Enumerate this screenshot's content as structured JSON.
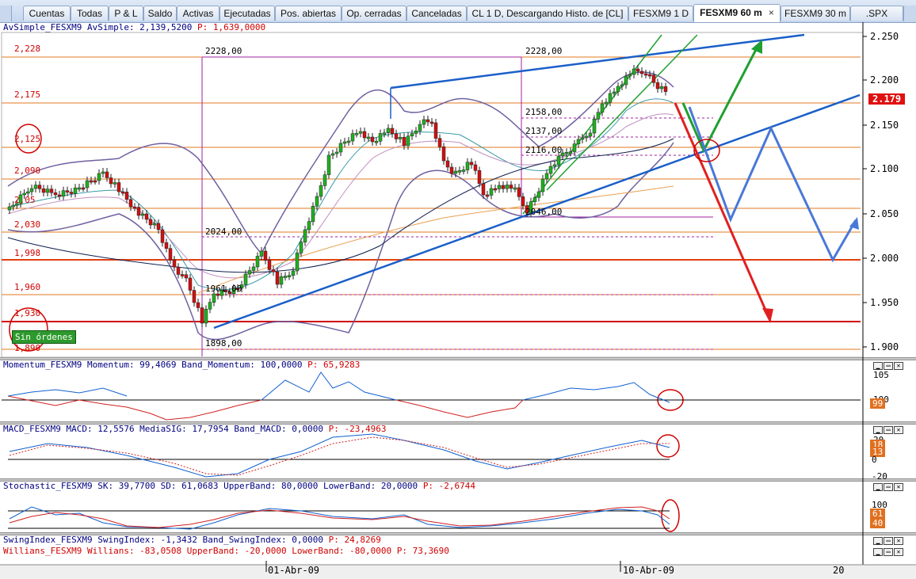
{
  "tabs": [
    {
      "label": "Cuentas",
      "active": false
    },
    {
      "label": "Todas",
      "active": false
    },
    {
      "label": "P & L",
      "active": false
    },
    {
      "label": "Saldo",
      "active": false
    },
    {
      "label": "Activas",
      "active": false
    },
    {
      "label": "Ejecutadas",
      "active": false
    },
    {
      "label": "Pos. abiertas",
      "active": false
    },
    {
      "label": "Op. cerradas",
      "active": false
    },
    {
      "label": "Canceladas",
      "active": false
    },
    {
      "label": "CL 1 D, Descargando Histo. de [CL]",
      "active": false
    },
    {
      "label": "FESXM9 1 D",
      "active": false
    },
    {
      "label": "FESXM9 60 m",
      "active": true
    },
    {
      "label": "FESXM9 30 m",
      "active": false
    },
    {
      "label": ".SPX",
      "active": false
    }
  ],
  "tab_close": "×",
  "price_panel": {
    "title_prefix": "AvSimple_FESXM9 AvSimple: 2,139,5200",
    "title_p": "P: 1,639,0000",
    "axis_ticks": [
      "2.250",
      "2.200",
      "2.150",
      "2.100",
      "2.050",
      "2.000",
      "1.950",
      "1.900"
    ],
    "last_price": "2.179",
    "level_labels": [
      "2,228",
      "2,175",
      "2,125",
      "2,090",
      "2,05",
      "2,030",
      "1,998",
      "1,960",
      "1,930",
      "1,890"
    ],
    "annotations": [
      "2228,00",
      "2228,00",
      "2158,00",
      "2137,00",
      "2116,00",
      "2024,00",
      "2046,00",
      "1961,00",
      "1898,00"
    ],
    "order_badge": "Sin órdenes"
  },
  "momentum_panel": {
    "title_prefix": "Momentum_FESXM9 Momentum: 99,4069 Band_Momentum: 100,0000",
    "title_p": "P: 65,9283",
    "axis_ticks": [
      "105",
      "100"
    ],
    "last_value": "99"
  },
  "macd_panel": {
    "title_prefix": "MACD_FESXM9 MACD: 12,5576 MediaSIG: 17,7954 Band_MACD: 0,0000",
    "title_p": "P: -23,4963",
    "axis_ticks": [
      "20",
      "13",
      "0",
      "-20"
    ],
    "last_values": [
      "18",
      "13"
    ]
  },
  "stochastic_panel": {
    "title_prefix": "Stochastic_FESXM9 SK: 39,7700 SD: 61,0683 UpperBand: 80,0000 LowerBand: 20,0000",
    "title_p": "P: -2,6744",
    "axis_ticks": [
      "100",
      "61",
      "40"
    ],
    "last_values": [
      "61",
      "40"
    ]
  },
  "swing_panel": {
    "title_prefix": "SwingIndex_FESXM9 SwingIndex: -1,3432 Band_SwingIndex: 0,0000",
    "title_p": "P: 24,8269"
  },
  "williams_panel": {
    "title_prefix": "Willians_FESXM9 Willians: -83,0508 UpperBand: -20,0000 LowerBand: -80,0000",
    "title_p": "P: 73,3690"
  },
  "date_axis": {
    "labels": [
      "01-Abr-09",
      "10-Abr-09",
      "20"
    ]
  },
  "colors": {
    "resistance": "#e07a20",
    "support_trend": "#1a5fc8",
    "bearish_arrow": "#e02020",
    "bullish_arrow": "#20a030",
    "alt_path": "#4a78d8",
    "marker_circle": "#d00000"
  }
}
